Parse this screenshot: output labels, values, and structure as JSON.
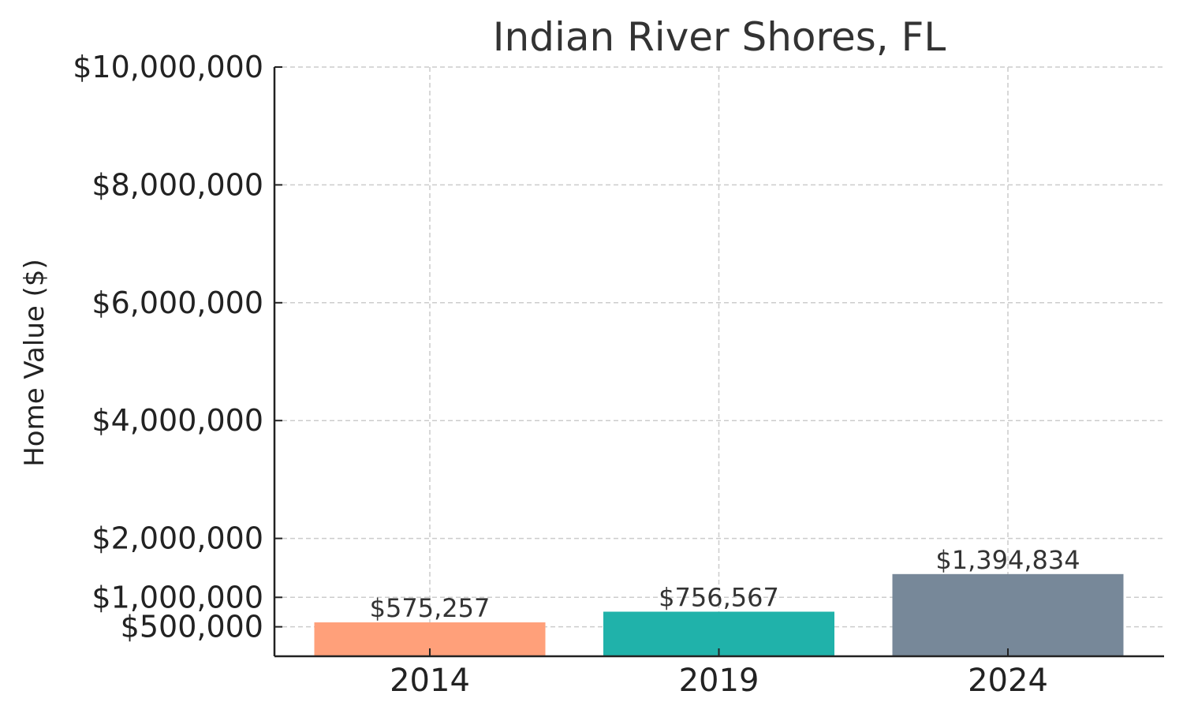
{
  "chart_data": {
    "type": "bar",
    "title": "Indian River Shores, FL",
    "xlabel": "",
    "ylabel": "Home Value ($)",
    "categories": [
      "2014",
      "2019",
      "2024"
    ],
    "values": [
      575257,
      756567,
      1394834
    ],
    "value_labels": [
      "$575,257",
      "$756,567",
      "$1,394,834"
    ],
    "colors": [
      "#FFA07A",
      "#20B2AA",
      "#778899"
    ],
    "ylim": [
      0,
      10000000
    ],
    "yticks": [
      500000,
      1000000,
      2000000,
      4000000,
      6000000,
      8000000,
      10000000
    ],
    "ytick_labels": [
      "$500,000",
      "$1,000,000",
      "$2,000,000",
      "$4,000,000",
      "$6,000,000",
      "$8,000,000",
      "$10,000,000"
    ],
    "grid": true,
    "legend": "none"
  }
}
